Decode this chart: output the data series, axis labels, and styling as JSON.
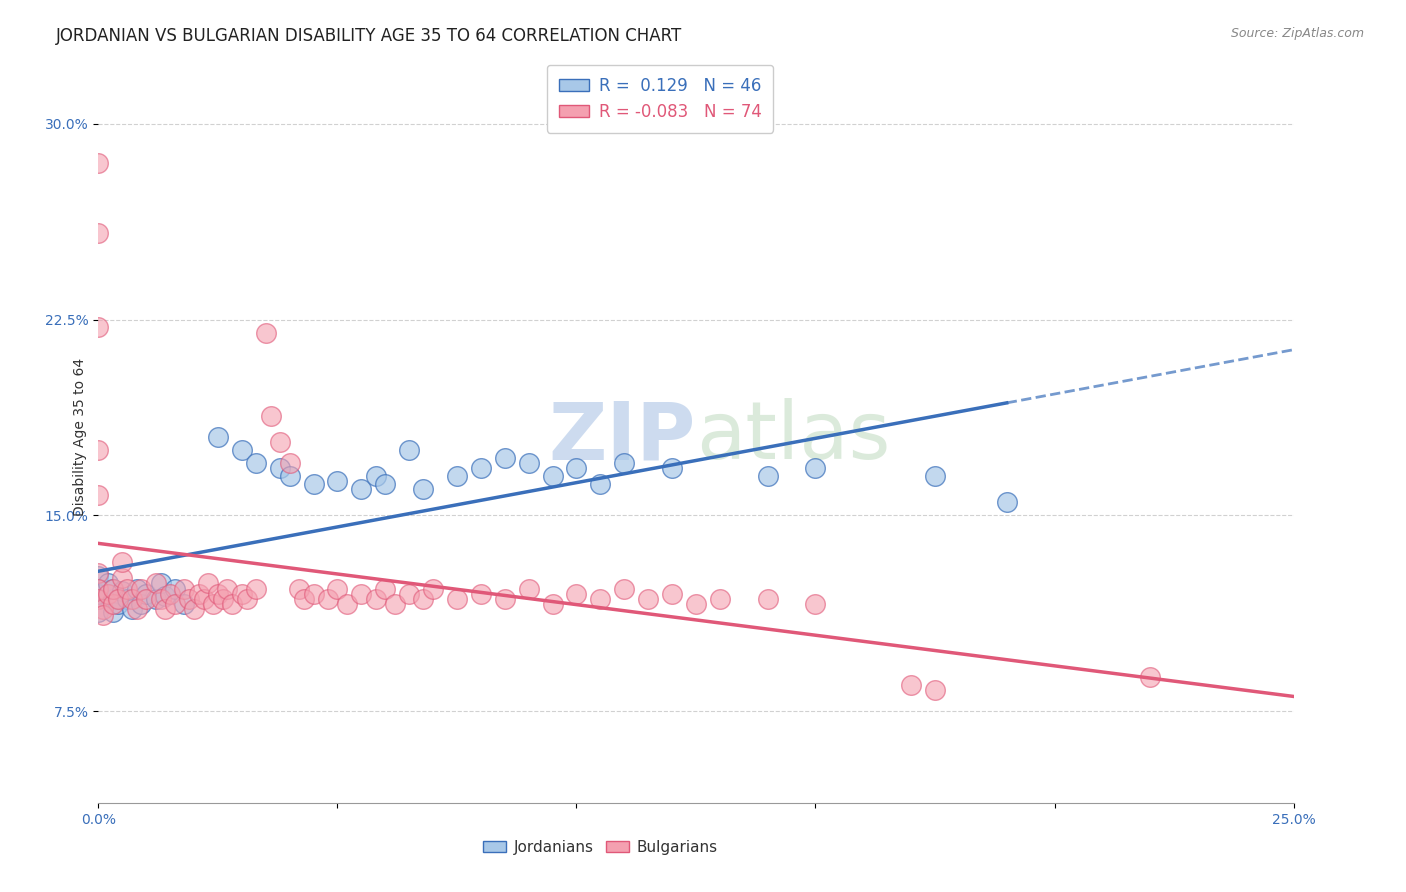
{
  "title": "JORDANIAN VS BULGARIAN DISABILITY AGE 35 TO 64 CORRELATION CHART",
  "source": "Source: ZipAtlas.com",
  "ylabel": "Disability Age 35 to 64",
  "xlim": [
    0.0,
    0.25
  ],
  "ylim": [
    0.04,
    0.32
  ],
  "xticks": [
    0.0,
    0.05,
    0.1,
    0.15,
    0.2,
    0.25
  ],
  "xticklabels": [
    "0.0%",
    "",
    "",
    "",
    "",
    "25.0%"
  ],
  "yticks": [
    0.075,
    0.15,
    0.225,
    0.3
  ],
  "yticklabels": [
    "7.5%",
    "15.0%",
    "22.5%",
    "30.0%"
  ],
  "r_jordanian": 0.129,
  "n_jordanian": 46,
  "r_bulgarian": -0.083,
  "n_bulgarian": 74,
  "blue_scatter_color": "#a8c8e8",
  "pink_scatter_color": "#f4a0b0",
  "blue_line_color": "#3a6fba",
  "pink_line_color": "#e05878",
  "legend_blue_fill": "#a8c8e8",
  "legend_pink_fill": "#f4a0b0",
  "jordanian_points": [
    [
      0.0,
      0.127
    ],
    [
      0.0,
      0.122
    ],
    [
      0.0,
      0.118
    ],
    [
      0.0,
      0.113
    ],
    [
      0.0,
      0.12
    ],
    [
      0.002,
      0.124
    ],
    [
      0.003,
      0.118
    ],
    [
      0.003,
      0.113
    ],
    [
      0.003,
      0.122
    ],
    [
      0.004,
      0.116
    ],
    [
      0.005,
      0.121
    ],
    [
      0.006,
      0.118
    ],
    [
      0.007,
      0.114
    ],
    [
      0.008,
      0.122
    ],
    [
      0.009,
      0.116
    ],
    [
      0.01,
      0.12
    ],
    [
      0.012,
      0.118
    ],
    [
      0.013,
      0.124
    ],
    [
      0.014,
      0.119
    ],
    [
      0.016,
      0.122
    ],
    [
      0.018,
      0.116
    ],
    [
      0.025,
      0.18
    ],
    [
      0.03,
      0.175
    ],
    [
      0.033,
      0.17
    ],
    [
      0.038,
      0.168
    ],
    [
      0.04,
      0.165
    ],
    [
      0.045,
      0.162
    ],
    [
      0.05,
      0.163
    ],
    [
      0.055,
      0.16
    ],
    [
      0.058,
      0.165
    ],
    [
      0.06,
      0.162
    ],
    [
      0.065,
      0.175
    ],
    [
      0.068,
      0.16
    ],
    [
      0.075,
      0.165
    ],
    [
      0.08,
      0.168
    ],
    [
      0.085,
      0.172
    ],
    [
      0.09,
      0.17
    ],
    [
      0.095,
      0.165
    ],
    [
      0.1,
      0.168
    ],
    [
      0.105,
      0.162
    ],
    [
      0.11,
      0.17
    ],
    [
      0.12,
      0.168
    ],
    [
      0.14,
      0.165
    ],
    [
      0.15,
      0.168
    ],
    [
      0.175,
      0.165
    ],
    [
      0.19,
      0.155
    ]
  ],
  "bulgarian_points": [
    [
      0.0,
      0.285
    ],
    [
      0.0,
      0.258
    ],
    [
      0.0,
      0.222
    ],
    [
      0.0,
      0.175
    ],
    [
      0.0,
      0.158
    ],
    [
      0.0,
      0.128
    ],
    [
      0.0,
      0.122
    ],
    [
      0.0,
      0.118
    ],
    [
      0.001,
      0.114
    ],
    [
      0.001,
      0.112
    ],
    [
      0.002,
      0.12
    ],
    [
      0.003,
      0.116
    ],
    [
      0.003,
      0.122
    ],
    [
      0.004,
      0.118
    ],
    [
      0.005,
      0.126
    ],
    [
      0.005,
      0.132
    ],
    [
      0.006,
      0.122
    ],
    [
      0.007,
      0.118
    ],
    [
      0.008,
      0.114
    ],
    [
      0.009,
      0.122
    ],
    [
      0.01,
      0.118
    ],
    [
      0.012,
      0.124
    ],
    [
      0.013,
      0.118
    ],
    [
      0.014,
      0.114
    ],
    [
      0.015,
      0.12
    ],
    [
      0.016,
      0.116
    ],
    [
      0.018,
      0.122
    ],
    [
      0.019,
      0.118
    ],
    [
      0.02,
      0.114
    ],
    [
      0.021,
      0.12
    ],
    [
      0.022,
      0.118
    ],
    [
      0.023,
      0.124
    ],
    [
      0.024,
      0.116
    ],
    [
      0.025,
      0.12
    ],
    [
      0.026,
      0.118
    ],
    [
      0.027,
      0.122
    ],
    [
      0.028,
      0.116
    ],
    [
      0.03,
      0.12
    ],
    [
      0.031,
      0.118
    ],
    [
      0.033,
      0.122
    ],
    [
      0.035,
      0.22
    ],
    [
      0.036,
      0.188
    ],
    [
      0.038,
      0.178
    ],
    [
      0.04,
      0.17
    ],
    [
      0.042,
      0.122
    ],
    [
      0.043,
      0.118
    ],
    [
      0.045,
      0.12
    ],
    [
      0.048,
      0.118
    ],
    [
      0.05,
      0.122
    ],
    [
      0.052,
      0.116
    ],
    [
      0.055,
      0.12
    ],
    [
      0.058,
      0.118
    ],
    [
      0.06,
      0.122
    ],
    [
      0.062,
      0.116
    ],
    [
      0.065,
      0.12
    ],
    [
      0.068,
      0.118
    ],
    [
      0.07,
      0.122
    ],
    [
      0.075,
      0.118
    ],
    [
      0.08,
      0.12
    ],
    [
      0.085,
      0.118
    ],
    [
      0.09,
      0.122
    ],
    [
      0.095,
      0.116
    ],
    [
      0.1,
      0.12
    ],
    [
      0.105,
      0.118
    ],
    [
      0.11,
      0.122
    ],
    [
      0.115,
      0.118
    ],
    [
      0.12,
      0.12
    ],
    [
      0.125,
      0.116
    ],
    [
      0.13,
      0.118
    ],
    [
      0.14,
      0.118
    ],
    [
      0.15,
      0.116
    ],
    [
      0.17,
      0.085
    ],
    [
      0.175,
      0.083
    ],
    [
      0.22,
      0.088
    ]
  ],
  "background_color": "#ffffff",
  "grid_color": "#cccccc",
  "title_fontsize": 12,
  "axis_label_fontsize": 10,
  "tick_fontsize": 10,
  "watermark_fontsize": 58
}
